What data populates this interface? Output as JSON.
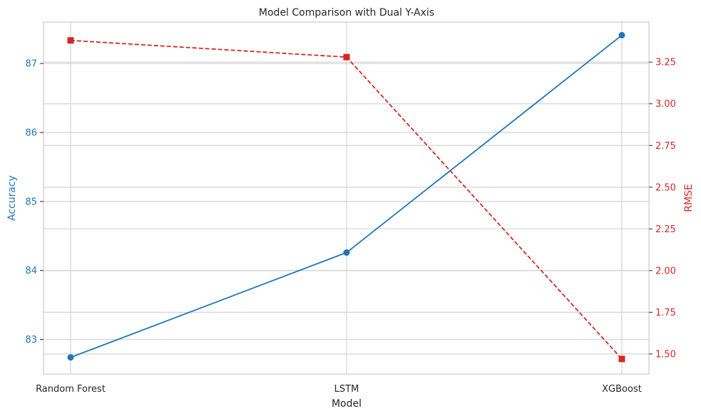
{
  "chart_data": {
    "type": "line",
    "title": "Model Comparison with Dual Y-Axis",
    "xlabel": "Model",
    "categories": [
      "Random Forest",
      "LSTM",
      "XGBoost"
    ],
    "grid": true,
    "left_axis": {
      "label": "Accuracy",
      "color": "#1f77b4",
      "ylim": [
        82.5,
        87.6
      ],
      "ticks": [
        83,
        84,
        85,
        86,
        87
      ],
      "tick_labels": [
        "83",
        "84",
        "85",
        "86",
        "87"
      ]
    },
    "right_axis": {
      "label": "RMSE",
      "color": "#d62728",
      "ylim": [
        1.38,
        3.49
      ],
      "ticks": [
        1.5,
        1.75,
        2.0,
        2.25,
        2.5,
        2.75,
        3.0,
        3.25
      ],
      "tick_labels": [
        "1.50",
        "1.75",
        "2.00",
        "2.25",
        "2.50",
        "2.75",
        "3.00",
        "3.25"
      ]
    },
    "series": [
      {
        "axis": "left",
        "color": "#1f77b4",
        "marker": "circle",
        "linestyle": "solid",
        "values": [
          82.74,
          84.26,
          87.41
        ]
      },
      {
        "axis": "right",
        "color": "#d62728",
        "marker": "square",
        "linestyle": "dashed",
        "values": [
          3.38,
          3.28,
          1.47
        ]
      }
    ]
  }
}
